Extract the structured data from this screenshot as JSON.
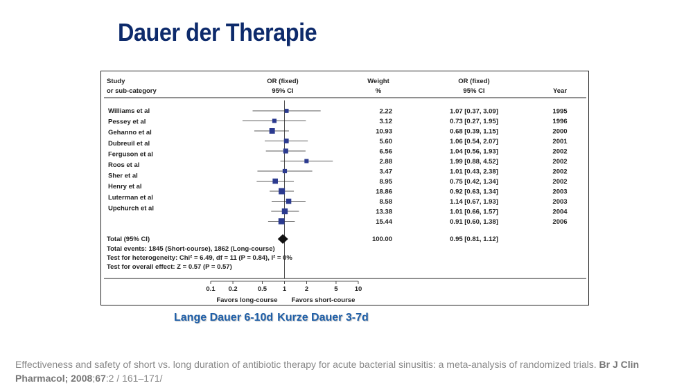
{
  "slide": {
    "title": "Dauer der Therapie",
    "label_long": "Lange Dauer 6-10d",
    "label_short": "Kurze Dauer 3-7d",
    "citation": {
      "text_plain": "Effectiveness and safety of short vs. long duration of antibiotic therapy for acute bacterial sinusitis: a meta-analysis of randomized trials. ",
      "journal": "Br J Clin Pharmacol; 2008",
      "sep": ";",
      "volume": "67",
      "pages": ":2 / 161–171/"
    }
  },
  "chart_data": {
    "type": "forest",
    "headers": {
      "study_1": "Study",
      "study_2": "or sub-category",
      "or_1": "OR (fixed)",
      "or_2": "95% CI",
      "weight_1": "Weight",
      "weight_2": "%",
      "ci_1": "OR (fixed)",
      "ci_2": "95% CI",
      "year": "Year"
    },
    "studies": [
      {
        "name": "Williams et al",
        "weight": "2.22",
        "or": 1.07,
        "lo": 0.37,
        "hi": 3.09,
        "ci_text": "1.07 [0.37, 3.09]",
        "year": "1995"
      },
      {
        "name": "Pessey et al",
        "weight": "3.12",
        "or": 0.73,
        "lo": 0.27,
        "hi": 1.95,
        "ci_text": "0.73 [0.27, 1.95]",
        "year": "1996"
      },
      {
        "name": "Gehanno et al",
        "weight": "10.93",
        "or": 0.68,
        "lo": 0.39,
        "hi": 1.15,
        "ci_text": "0.68 [0.39, 1.15]",
        "year": "2000"
      },
      {
        "name": "Dubreuil et al",
        "weight": "5.60",
        "or": 1.06,
        "lo": 0.54,
        "hi": 2.07,
        "ci_text": "1.06 [0.54, 2.07]",
        "year": "2001"
      },
      {
        "name": "Ferguson et al",
        "weight": "6.56",
        "or": 1.04,
        "lo": 0.56,
        "hi": 1.93,
        "ci_text": "1.04 [0.56, 1.93]",
        "year": "2002"
      },
      {
        "name": "Roos et al",
        "weight": "2.88",
        "or": 1.99,
        "lo": 0.88,
        "hi": 4.52,
        "ci_text": "1.99 [0.88, 4.52]",
        "year": "2002"
      },
      {
        "name": "Sher et al",
        "weight": "3.47",
        "or": 1.01,
        "lo": 0.43,
        "hi": 2.38,
        "ci_text": "1.01 [0.43, 2.38]",
        "year": "2002"
      },
      {
        "name": "Henry et al",
        "weight": "8.95",
        "or": 0.75,
        "lo": 0.42,
        "hi": 1.34,
        "ci_text": "0.75 [0.42, 1.34]",
        "year": "2002"
      },
      {
        "name": "Luterman et al",
        "weight": "18.86",
        "or": 0.92,
        "lo": 0.63,
        "hi": 1.34,
        "ci_text": "0.92 [0.63, 1.34]",
        "year": "2003"
      },
      {
        "name": "Upchurch et al",
        "weight": "8.58",
        "or": 1.14,
        "lo": 0.67,
        "hi": 1.93,
        "ci_text": "1.14 [0.67, 1.93]",
        "year": "2003"
      },
      {
        "name": "",
        "weight": "13.38",
        "or": 1.01,
        "lo": 0.66,
        "hi": 1.57,
        "ci_text": "1.01 [0.66, 1.57]",
        "year": "2004"
      },
      {
        "name": "",
        "weight": "15.44",
        "or": 0.91,
        "lo": 0.6,
        "hi": 1.38,
        "ci_text": "0.91 [0.60, 1.38]",
        "year": "2006"
      }
    ],
    "total": {
      "label": "Total (95% CI)",
      "weight": "100.00",
      "or": 0.95,
      "lo": 0.81,
      "hi": 1.12,
      "ci_text": "0.95 [0.81, 1.12]"
    },
    "notes": [
      "Total events: 1845 (Short-course), 1862 (Long-course)",
      "Test for heterogeneity: Chi² = 6.49, df = 11 (P = 0.84), I² = 0%",
      "Test for overall effect: Z = 0.57 (P = 0.57)"
    ],
    "x_axis": {
      "scale": "log",
      "ticks": [
        0.1,
        0.2,
        0.5,
        1,
        2,
        5,
        10
      ],
      "tick_labels": [
        "0.1",
        "0.2",
        "0.5",
        "1",
        "2",
        "5",
        "10"
      ]
    },
    "favors_left": "Favors long-course",
    "favors_right": "Favors short-course",
    "colors": {
      "marker": "#2b3a8f",
      "line": "#222222",
      "diamond": "#111111"
    }
  }
}
